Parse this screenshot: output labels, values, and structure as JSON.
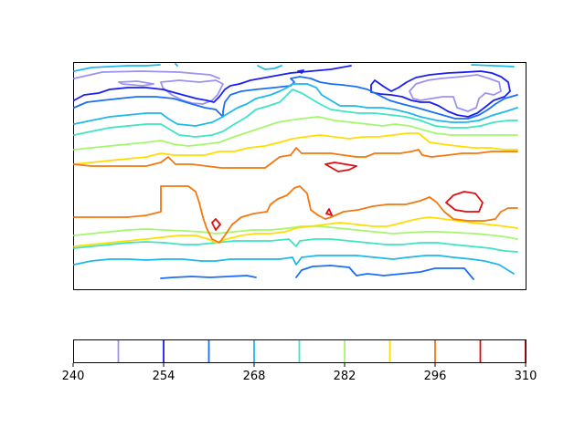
{
  "chart_data": {
    "type": "contour",
    "title": "",
    "xlabel": "",
    "ylabel": "",
    "grid": false,
    "colorbar": {
      "orientation": "horizontal",
      "location": "bottom",
      "range": [
        240,
        310
      ],
      "ticks": [
        240,
        254,
        268,
        282,
        296,
        310
      ],
      "tick_labels": [
        "240",
        "254",
        "268",
        "282",
        "296",
        "310"
      ],
      "levels": [
        {
          "value": 247,
          "color": "#9b93ef"
        },
        {
          "value": 254,
          "color": "#1a1ef5"
        },
        {
          "value": 261,
          "color": "#1a6ff7"
        },
        {
          "value": 268,
          "color": "#1fb8ec"
        },
        {
          "value": 275,
          "color": "#3be6c0"
        },
        {
          "value": 282,
          "color": "#a4f76b"
        },
        {
          "value": 289,
          "color": "#ffdd00"
        },
        {
          "value": 296,
          "color": "#f5770f"
        },
        {
          "value": 303,
          "color": "#e00e10"
        },
        {
          "value": 310,
          "color": "#800000"
        }
      ]
    }
  }
}
